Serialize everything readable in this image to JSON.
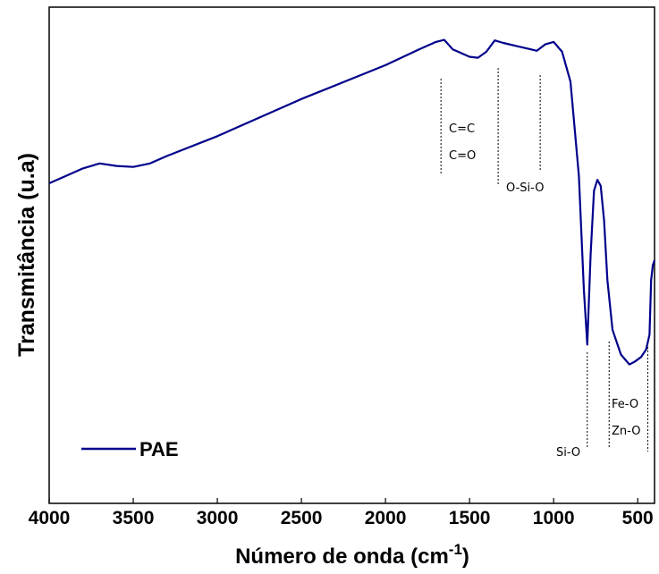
{
  "chart_data": {
    "type": "line",
    "xlabel": "Número de onda (cm",
    "xlabel_sup": "-1",
    "xlabel_end": ")",
    "ylabel": "Transmitância (u.a)",
    "xlim": [
      4000,
      400
    ],
    "x_reversed": true,
    "ylim": [
      0,
      100
    ],
    "y_ticks_visible": false,
    "x_ticks": [
      "4000",
      "3500",
      "3000",
      "2500",
      "2000",
      "1500",
      "1000",
      "500"
    ],
    "x_tick_values": [
      4000,
      3500,
      3000,
      2500,
      2000,
      1500,
      1000,
      500
    ],
    "grid": false,
    "legend_position": "bottom-left",
    "line_color": "#00008b",
    "series": [
      {
        "name": "PAE",
        "x": [
          4000,
          3900,
          3800,
          3700,
          3600,
          3500,
          3400,
          3300,
          3000,
          2500,
          2000,
          1800,
          1700,
          1650,
          1600,
          1500,
          1450,
          1400,
          1350,
          1300,
          1200,
          1150,
          1100,
          1050,
          1000,
          950,
          900,
          850,
          820,
          800,
          780,
          760,
          740,
          720,
          700,
          680,
          650,
          600,
          550,
          520,
          480,
          450,
          430,
          420,
          410,
          400
        ],
        "y": [
          64.5,
          66.0,
          67.5,
          68.5,
          68.0,
          67.8,
          68.5,
          70.0,
          74.0,
          81.5,
          88.3,
          91.5,
          93.0,
          93.4,
          91.5,
          90.0,
          89.8,
          91.0,
          93.3,
          92.8,
          92.0,
          91.6,
          91.2,
          92.5,
          93.0,
          91.0,
          85.0,
          66.0,
          43.0,
          32.0,
          50.0,
          63.0,
          65.2,
          64.0,
          57.0,
          45.0,
          35.0,
          30.0,
          28.0,
          28.5,
          29.5,
          31.0,
          34.0,
          45.0,
          48.0,
          49.0
        ]
      }
    ],
    "annotations": [
      {
        "text": "C=C",
        "x": 1670
      },
      {
        "text": "C=O",
        "x": 1670
      },
      {
        "text": "O-Si-O",
        "x": 1080
      },
      {
        "text": "Si-O",
        "x": 800
      },
      {
        "text": "Fe-O",
        "x": 670
      },
      {
        "text": "Zn-O",
        "x": 440
      }
    ],
    "marker_lines": [
      1670,
      1330,
      1080,
      800,
      670,
      440
    ]
  }
}
